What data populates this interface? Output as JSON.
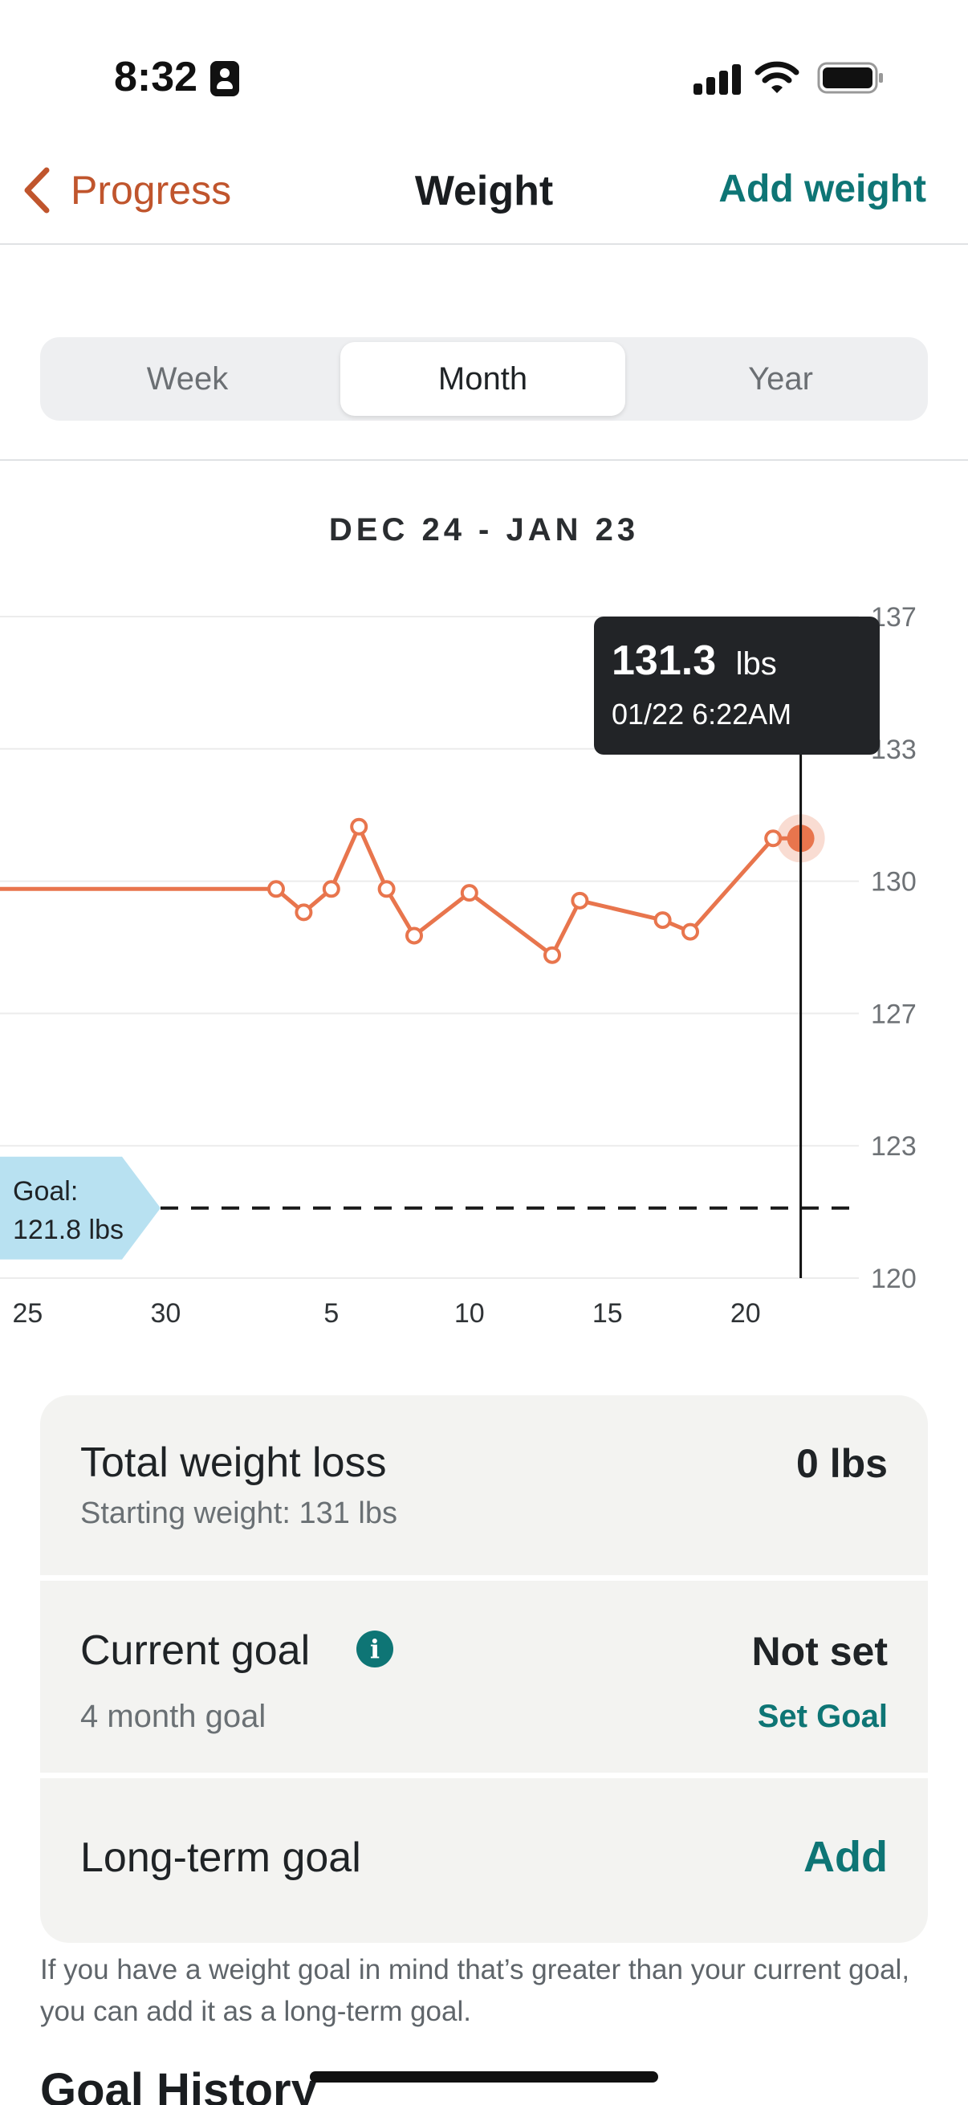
{
  "status_bar": {
    "time": "8:32"
  },
  "nav": {
    "back_label": "Progress",
    "title": "Weight",
    "action_label": "Add weight"
  },
  "segments": [
    "Week",
    "Month",
    "Year"
  ],
  "selected_segment": "Month",
  "date_range": "DEC 24 - JAN 23",
  "tooltip": {
    "value": "131.3",
    "unit": "lbs",
    "timestamp": "01/22 6:22AM"
  },
  "goal_flag": {
    "line1": "Goal:",
    "line2": "121.8 lbs"
  },
  "colors": {
    "accent_orange": "#e8754d",
    "teal": "#0e7575",
    "back_orange": "#c0552d",
    "goal_flag": "#b8e1f1",
    "tooltip_bg": "#222427"
  },
  "chart_data": {
    "type": "line",
    "title": "",
    "xlabel": "",
    "ylabel": "",
    "x_ticks": [
      "25",
      "30",
      "5",
      "10",
      "15",
      "20"
    ],
    "y_ticks": [
      "137",
      "133",
      "130",
      "127",
      "123",
      "120"
    ],
    "ylim": [
      120,
      137
    ],
    "goal": 121.8,
    "series": [
      {
        "values": [
          {
            "x": "Dec 24",
            "y": 130.0
          },
          {
            "x": "Jan 3",
            "y": 130.0
          },
          {
            "x": "Jan 4",
            "y": 129.4
          },
          {
            "x": "Jan 5",
            "y": 130.0
          },
          {
            "x": "Jan 6",
            "y": 131.6
          },
          {
            "x": "Jan 7",
            "y": 130.0
          },
          {
            "x": "Jan 8",
            "y": 128.8
          },
          {
            "x": "Jan 10",
            "y": 129.9
          },
          {
            "x": "Jan 13",
            "y": 128.3
          },
          {
            "x": "Jan 14",
            "y": 129.7
          },
          {
            "x": "Jan 17",
            "y": 129.2
          },
          {
            "x": "Jan 18",
            "y": 128.9
          },
          {
            "x": "Jan 21",
            "y": 131.3
          },
          {
            "x": "Jan 22",
            "y": 131.3
          }
        ]
      }
    ],
    "highlighted_point": {
      "x": "Jan 22",
      "y": 131.3
    }
  },
  "stats": {
    "total_loss": {
      "title": "Total weight loss",
      "value": "0 lbs",
      "subtitle": "Starting weight: 131 lbs"
    },
    "current_goal": {
      "title": "Current goal",
      "value": "Not set",
      "subtitle": "4 month goal",
      "link": "Set Goal"
    },
    "long_term": {
      "title": "Long-term goal",
      "link": "Add"
    }
  },
  "footnote": "If you have a weight goal in mind that’s greater than your current goal, you can add it as a long-term goal.",
  "goal_history_heading": "Goal History"
}
